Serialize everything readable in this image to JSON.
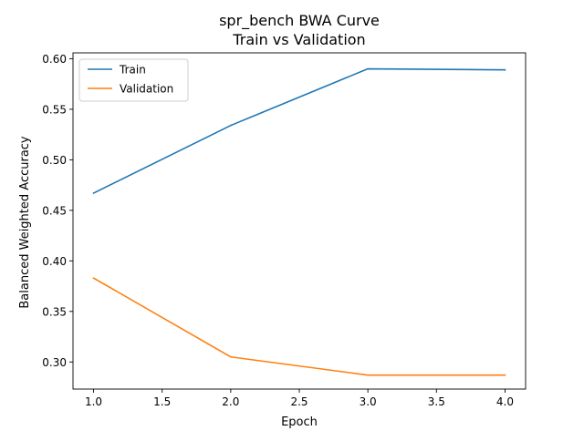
{
  "chart_data": {
    "type": "line",
    "title_line1": "spr_bench BWA Curve",
    "title_line2": "Train vs Validation",
    "xlabel": "Epoch",
    "ylabel": "Balanced Weighted Accuracy",
    "xlim": [
      0.85,
      4.15
    ],
    "ylim": [
      0.2732,
      0.6058
    ],
    "xticks": [
      1.0,
      1.5,
      2.0,
      2.5,
      3.0,
      3.5,
      4.0
    ],
    "xtick_labels": [
      "1.0",
      "1.5",
      "2.0",
      "2.5",
      "3.0",
      "3.5",
      "4.0"
    ],
    "yticks": [
      0.3,
      0.35,
      0.4,
      0.45,
      0.5,
      0.55,
      0.6
    ],
    "ytick_labels": [
      "0.30",
      "0.35",
      "0.40",
      "0.45",
      "0.50",
      "0.55",
      "0.60"
    ],
    "grid": false,
    "legend_position": "top-left",
    "x": [
      1,
      2,
      3,
      4
    ],
    "series": [
      {
        "name": "Train",
        "color": "#1f77b4",
        "values": [
          0.467,
          0.534,
          0.59,
          0.589
        ]
      },
      {
        "name": "Validation",
        "color": "#ff7f0e",
        "values": [
          0.383,
          0.305,
          0.287,
          0.287
        ]
      }
    ]
  }
}
